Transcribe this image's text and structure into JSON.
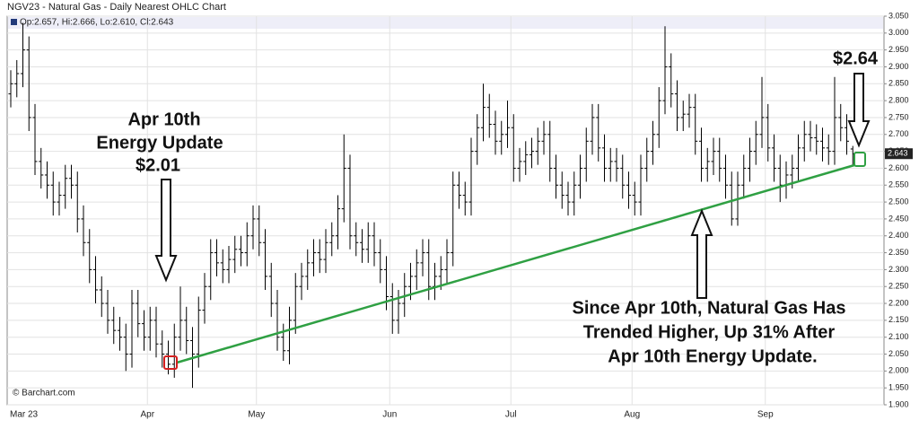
{
  "chart_data": {
    "type": "ohlc",
    "title": "NGV23 - Natural Gas - Daily Nearest OHLC Chart",
    "ohlc_readout": "Op:2.657, Hi:2.666, Lo:2.610, Cl:2.643",
    "watermark": "© Barchart.com",
    "annotations": [
      "Apr 10th",
      "Energy Update",
      "$2.01",
      "$2.64",
      "Since Apr 10th, Natural Gas Has",
      "Trended Higher, Up 31% After",
      "Apr 10th Energy Update."
    ],
    "color": "#000000",
    "grid": true,
    "categories": [
      "Mar 23",
      null,
      null,
      null,
      null,
      null,
      null,
      null,
      null,
      null,
      null,
      null,
      null,
      null,
      null,
      null,
      null,
      null,
      null,
      null,
      null,
      null,
      null,
      "Apr",
      null,
      null,
      null,
      null,
      null,
      null,
      null,
      null,
      null,
      null,
      null,
      null,
      null,
      null,
      null,
      null,
      null,
      "May",
      null,
      null,
      null,
      null,
      null,
      null,
      null,
      null,
      null,
      null,
      null,
      null,
      null,
      null,
      null,
      null,
      null,
      null,
      null,
      null,
      null,
      "Jun",
      null,
      null,
      null,
      null,
      null,
      null,
      null,
      null,
      null,
      null,
      null,
      null,
      null,
      null,
      null,
      null,
      null,
      null,
      null,
      "Jul",
      null,
      null,
      null,
      null,
      null,
      null,
      null,
      null,
      null,
      null,
      null,
      null,
      null,
      null,
      null,
      null,
      null,
      null,
      null,
      "Aug",
      null,
      null,
      null,
      null,
      null,
      null,
      null,
      null,
      null,
      null,
      null,
      null,
      null,
      null,
      null,
      null,
      null,
      null,
      null,
      null,
      null,
      "Sep",
      null,
      null,
      null,
      null,
      null,
      null,
      null,
      null,
      null,
      null,
      null,
      null,
      null,
      null
    ],
    "open": [
      2.82,
      2.85,
      2.88,
      2.95,
      2.75,
      2.62,
      2.58,
      2.55,
      2.5,
      2.52,
      2.57,
      2.55,
      2.45,
      2.38,
      2.3,
      2.24,
      2.2,
      2.15,
      2.12,
      2.1,
      2.05,
      2.2,
      2.14,
      2.1,
      2.15,
      2.08,
      2.05,
      2.02,
      2.1,
      2.15,
      2.09,
      2.05,
      2.18,
      2.25,
      2.35,
      2.32,
      2.3,
      2.33,
      2.36,
      2.35,
      2.4,
      2.45,
      2.38,
      2.28,
      2.2,
      2.1,
      2.06,
      2.15,
      2.25,
      2.28,
      2.32,
      2.35,
      2.33,
      2.38,
      2.4,
      2.48,
      2.6,
      2.4,
      2.38,
      2.36,
      2.4,
      2.35,
      2.3,
      2.22,
      2.15,
      2.2,
      2.25,
      2.28,
      2.32,
      2.35,
      2.25,
      2.28,
      2.3,
      2.35,
      2.55,
      2.52,
      2.5,
      2.65,
      2.72,
      2.78,
      2.73,
      2.68,
      2.7,
      2.72,
      2.6,
      2.62,
      2.64,
      2.65,
      2.68,
      2.7,
      2.6,
      2.55,
      2.52,
      2.5,
      2.55,
      2.6,
      2.68,
      2.75,
      2.66,
      2.6,
      2.62,
      2.6,
      2.55,
      2.52,
      2.5,
      2.6,
      2.65,
      2.7,
      2.8,
      2.9,
      2.82,
      2.75,
      2.76,
      2.78,
      2.68,
      2.6,
      2.62,
      2.65,
      2.6,
      2.55,
      2.45,
      2.55,
      2.6,
      2.65,
      2.7,
      2.75,
      2.66,
      2.6,
      2.55,
      2.58,
      2.6,
      2.66,
      2.7,
      2.69,
      2.68,
      2.66,
      2.65,
      2.75,
      2.72,
      2.657
    ],
    "high": [
      2.89,
      2.92,
      3.03,
      2.99,
      2.79,
      2.66,
      2.62,
      2.59,
      2.56,
      2.61,
      2.61,
      2.59,
      2.49,
      2.42,
      2.34,
      2.28,
      2.24,
      2.19,
      2.16,
      2.14,
      2.24,
      2.24,
      2.18,
      2.19,
      2.19,
      2.12,
      2.09,
      2.14,
      2.25,
      2.19,
      2.13,
      2.22,
      2.29,
      2.39,
      2.39,
      2.36,
      2.37,
      2.4,
      2.4,
      2.44,
      2.49,
      2.49,
      2.42,
      2.32,
      2.24,
      2.14,
      2.19,
      2.29,
      2.32,
      2.36,
      2.39,
      2.39,
      2.42,
      2.44,
      2.52,
      2.7,
      2.64,
      2.44,
      2.42,
      2.44,
      2.44,
      2.39,
      2.34,
      2.26,
      2.24,
      2.29,
      2.32,
      2.36,
      2.39,
      2.39,
      2.32,
      2.34,
      2.39,
      2.59,
      2.59,
      2.56,
      2.69,
      2.76,
      2.85,
      2.82,
      2.77,
      2.74,
      2.8,
      2.76,
      2.66,
      2.68,
      2.69,
      2.72,
      2.74,
      2.74,
      2.64,
      2.59,
      2.56,
      2.59,
      2.64,
      2.72,
      2.79,
      2.79,
      2.7,
      2.66,
      2.66,
      2.64,
      2.59,
      2.56,
      2.64,
      2.69,
      2.74,
      2.84,
      3.02,
      2.94,
      2.86,
      2.8,
      2.82,
      2.82,
      2.72,
      2.66,
      2.69,
      2.69,
      2.64,
      2.59,
      2.59,
      2.64,
      2.69,
      2.74,
      2.87,
      2.79,
      2.7,
      2.64,
      2.62,
      2.64,
      2.7,
      2.74,
      2.74,
      2.73,
      2.72,
      2.7,
      2.87,
      2.79,
      2.76,
      2.666
    ],
    "low": [
      2.78,
      2.81,
      2.84,
      2.71,
      2.58,
      2.54,
      2.51,
      2.46,
      2.46,
      2.48,
      2.51,
      2.41,
      2.34,
      2.26,
      2.2,
      2.16,
      2.11,
      2.08,
      2.06,
      2.0,
      2.01,
      2.1,
      2.06,
      2.06,
      2.04,
      2.01,
      1.99,
      1.98,
      2.06,
      2.05,
      1.95,
      2.01,
      2.14,
      2.21,
      2.28,
      2.26,
      2.26,
      2.29,
      2.31,
      2.31,
      2.36,
      2.34,
      2.24,
      2.16,
      2.06,
      2.03,
      2.02,
      2.11,
      2.21,
      2.24,
      2.28,
      2.29,
      2.29,
      2.34,
      2.36,
      2.44,
      2.36,
      2.34,
      2.32,
      2.32,
      2.31,
      2.26,
      2.18,
      2.11,
      2.11,
      2.16,
      2.21,
      2.24,
      2.28,
      2.21,
      2.21,
      2.24,
      2.26,
      2.31,
      2.48,
      2.46,
      2.46,
      2.61,
      2.68,
      2.69,
      2.64,
      2.64,
      2.66,
      2.56,
      2.56,
      2.58,
      2.6,
      2.61,
      2.64,
      2.56,
      2.51,
      2.48,
      2.46,
      2.46,
      2.51,
      2.56,
      2.64,
      2.62,
      2.56,
      2.56,
      2.56,
      2.51,
      2.48,
      2.46,
      2.46,
      2.56,
      2.61,
      2.66,
      2.76,
      2.78,
      2.71,
      2.71,
      2.72,
      2.64,
      2.56,
      2.56,
      2.58,
      2.56,
      2.51,
      2.43,
      2.43,
      2.51,
      2.56,
      2.61,
      2.66,
      2.62,
      2.56,
      2.5,
      2.51,
      2.54,
      2.56,
      2.62,
      2.65,
      2.64,
      2.62,
      2.61,
      2.61,
      2.68,
      2.64,
      2.61
    ],
    "close": [
      2.85,
      2.88,
      2.95,
      2.75,
      2.62,
      2.58,
      2.55,
      2.5,
      2.52,
      2.57,
      2.55,
      2.45,
      2.38,
      2.3,
      2.24,
      2.2,
      2.15,
      2.12,
      2.1,
      2.05,
      2.2,
      2.14,
      2.1,
      2.15,
      2.08,
      2.05,
      2.02,
      2.1,
      2.15,
      2.09,
      2.05,
      2.18,
      2.25,
      2.35,
      2.32,
      2.3,
      2.33,
      2.36,
      2.35,
      2.4,
      2.45,
      2.38,
      2.28,
      2.2,
      2.1,
      2.06,
      2.15,
      2.25,
      2.28,
      2.32,
      2.35,
      2.33,
      2.38,
      2.4,
      2.48,
      2.6,
      2.4,
      2.38,
      2.36,
      2.4,
      2.35,
      2.3,
      2.22,
      2.15,
      2.2,
      2.25,
      2.28,
      2.32,
      2.35,
      2.25,
      2.28,
      2.3,
      2.35,
      2.55,
      2.52,
      2.5,
      2.65,
      2.72,
      2.78,
      2.73,
      2.68,
      2.7,
      2.72,
      2.6,
      2.62,
      2.64,
      2.65,
      2.68,
      2.7,
      2.6,
      2.55,
      2.52,
      2.5,
      2.55,
      2.6,
      2.68,
      2.75,
      2.66,
      2.6,
      2.62,
      2.6,
      2.55,
      2.52,
      2.5,
      2.6,
      2.65,
      2.7,
      2.8,
      2.9,
      2.82,
      2.75,
      2.76,
      2.78,
      2.68,
      2.6,
      2.62,
      2.65,
      2.6,
      2.55,
      2.45,
      2.55,
      2.6,
      2.65,
      2.7,
      2.75,
      2.66,
      2.6,
      2.55,
      2.58,
      2.6,
      2.66,
      2.7,
      2.69,
      2.68,
      2.66,
      2.65,
      2.75,
      2.72,
      2.68,
      2.643
    ],
    "ylim": [
      1.9,
      3.05
    ],
    "yticks": [
      {
        "value": 1.9,
        "label": "1.900"
      },
      {
        "value": 1.95,
        "label": "1.950"
      },
      {
        "value": 2.0,
        "label": "2.000"
      },
      {
        "value": 2.05,
        "label": "2.050"
      },
      {
        "value": 2.1,
        "label": "2.100"
      },
      {
        "value": 2.15,
        "label": "2.150"
      },
      {
        "value": 2.2,
        "label": "2.200"
      },
      {
        "value": 2.25,
        "label": "2.250"
      },
      {
        "value": 2.3,
        "label": "2.300"
      },
      {
        "value": 2.35,
        "label": "2.350"
      },
      {
        "value": 2.4,
        "label": "2.400"
      },
      {
        "value": 2.45,
        "label": "2.450"
      },
      {
        "value": 2.5,
        "label": "2.500"
      },
      {
        "value": 2.55,
        "label": "2.550"
      },
      {
        "value": 2.6,
        "label": "2.600"
      },
      {
        "value": 2.65,
        "label": "2.650"
      },
      {
        "value": 2.7,
        "label": "2.700"
      },
      {
        "value": 2.75,
        "label": "2.750"
      },
      {
        "value": 2.8,
        "label": "2.800"
      },
      {
        "value": 2.85,
        "label": "2.850"
      },
      {
        "value": 2.9,
        "label": "2.900"
      },
      {
        "value": 2.95,
        "label": "2.950"
      },
      {
        "value": 3.0,
        "label": "3.000"
      },
      {
        "value": 3.05,
        "label": "3.050"
      }
    ]
  }
}
